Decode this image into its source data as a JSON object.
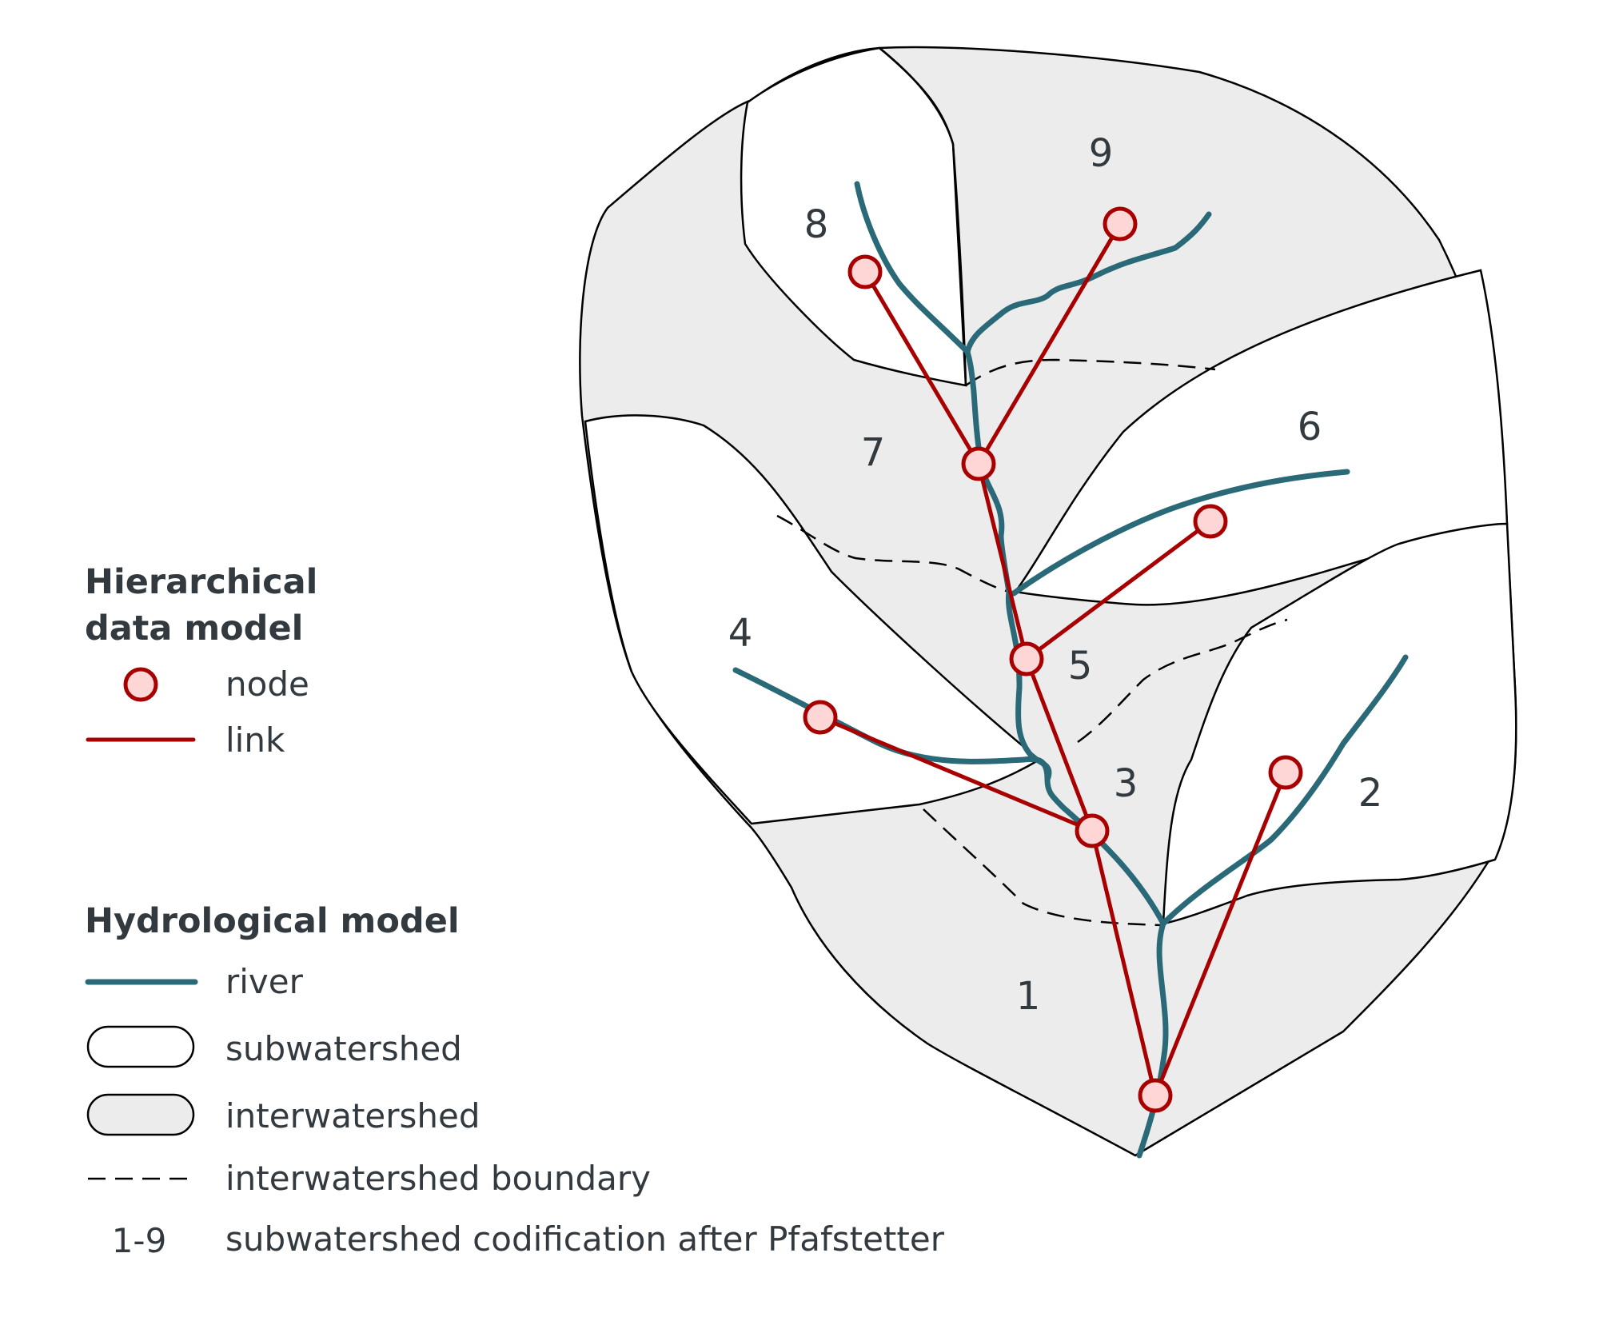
{
  "colors": {
    "river": "#2a6a78",
    "link": "#a80000",
    "node_fill": "#ffd6d6",
    "interwatershed_fill": "#ececec",
    "subwatershed_fill": "#ffffff",
    "text": "#333a3f"
  },
  "codes": [
    "1",
    "2",
    "3",
    "4",
    "5",
    "6",
    "7",
    "8",
    "9"
  ],
  "legend": {
    "hierarchical": {
      "heading_line1": "Hierarchical",
      "heading_line2": "data model",
      "node_label": "node",
      "link_label": "link"
    },
    "hydrological": {
      "heading": "Hydrological model",
      "river_label": "river",
      "subwatershed_label": "subwatershed",
      "interwatershed_label": "interwatershed",
      "boundary_label": "interwatershed boundary",
      "code_symbol": "1-9",
      "code_label": "subwatershed codification after Pfafstetter"
    }
  }
}
